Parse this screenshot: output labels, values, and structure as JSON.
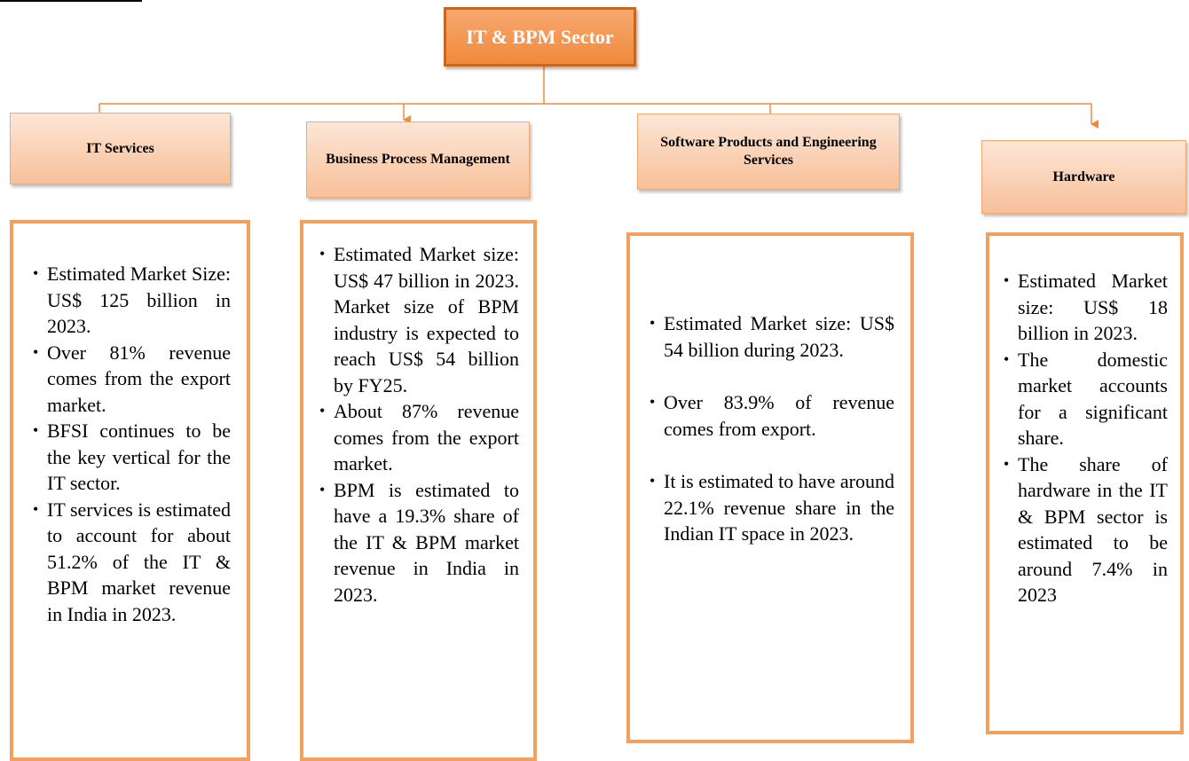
{
  "root": {
    "label": "IT & BPM Sector"
  },
  "categories": [
    {
      "title": "IT Services",
      "items": [
        "Estimated Market Size: US$ 125 billion in 2023.",
        "Over 81% revenue comes from the export market.",
        "BFSI continues to be the key vertical for the IT sector.",
        "IT services is estimated to account for about 51.2% of the IT & BPM market revenue in India in 2023."
      ]
    },
    {
      "title": "Business Process Management",
      "items": [
        "Estimated Market size: US$ 47 billion in 2023. Market size of BPM industry is expected to reach US$ 54 billion by FY25.",
        "About 87% revenue comes from the export market.",
        "BPM is estimated to have a 19.3% share of the IT & BPM market revenue in India in 2023."
      ]
    },
    {
      "title": "Software Products and Engineering Services",
      "items": [
        "Estimated Market size: US$ 54 billion during 2023.",
        "Over 83.9% of revenue comes from export.",
        "It is estimated to have around 22.1% revenue share in the Indian IT space in 2023."
      ]
    },
    {
      "title": "Hardware",
      "items": [
        "Estimated Market size: US$ 18 billion in 2023.",
        "The domestic market accounts for a significant share.",
        "The share of hardware in the IT & BPM sector is estimated to be around 7.4% in 2023"
      ]
    }
  ]
}
